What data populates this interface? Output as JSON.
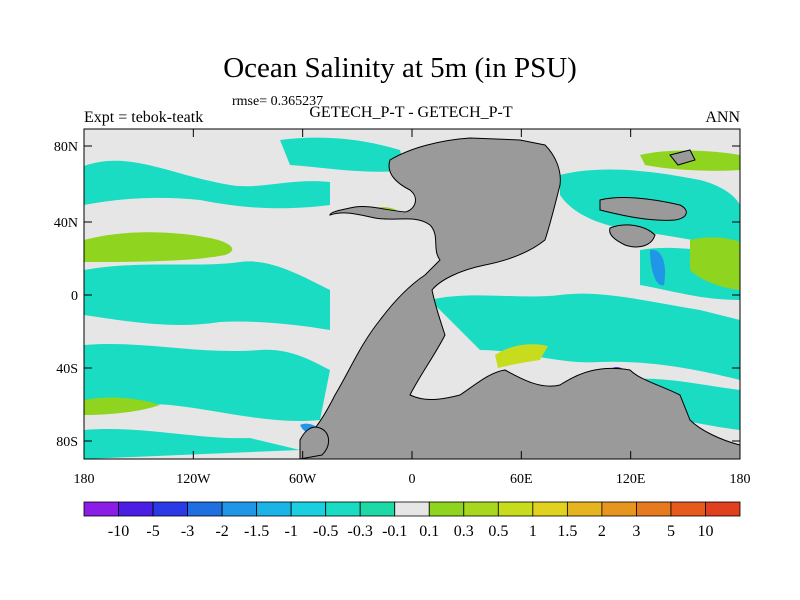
{
  "title": "Ocean Salinity at 5m (in PSU)",
  "rmse": "rmse= 0.365237",
  "center_string": "GETECH_P-T - GETECH_P-T",
  "left_string": "Expt = tebok-teatk",
  "right_string": "ANN",
  "x_ticks": [
    "180",
    "120W",
    "60W",
    "0",
    "60E",
    "120E",
    "180"
  ],
  "y_ticks": [
    "80N",
    "40N",
    "0",
    "40S",
    "80S"
  ],
  "colorbar": {
    "labels": [
      "-10",
      "-5",
      "-3",
      "-2",
      "-1.5",
      "-1",
      "-0.5",
      "-0.3",
      "-0.1",
      "0.1",
      "0.3",
      "0.5",
      "1",
      "1.5",
      "2",
      "3",
      "5",
      "10"
    ],
    "colors": [
      "#8a1ee6",
      "#4b1ee6",
      "#2a3ae6",
      "#1f6fe0",
      "#2296e6",
      "#1ab4e6",
      "#1ccfe0",
      "#19dcc2",
      "#1cd9a5",
      "#e6e6e6",
      "#8fd41e",
      "#a8d81e",
      "#c8dc1e",
      "#e0d21e",
      "#e6b41e",
      "#e6961e",
      "#e67a1e",
      "#e65a1e",
      "#e0401e"
    ]
  },
  "map_colors": {
    "ocean": "#e6e6e6",
    "land": "#9a9a9a"
  }
}
